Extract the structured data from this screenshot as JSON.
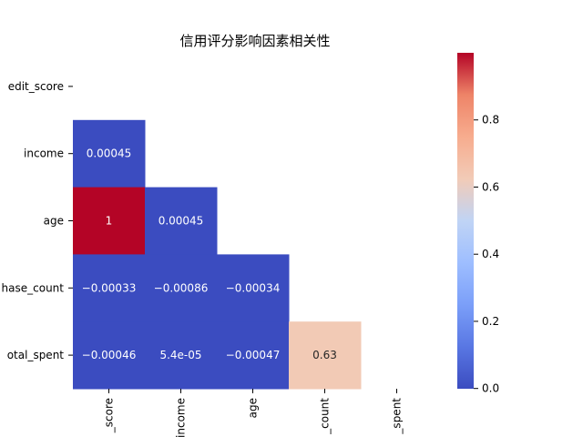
{
  "chart_data": {
    "type": "heatmap",
    "title": "信用评分影响因素相关性",
    "ylabels": [
      "edit_score",
      "income",
      "age",
      "hase_count",
      "otal_spent"
    ],
    "xlabels": [
      "_score",
      "income",
      "age",
      "_count",
      "_spent"
    ],
    "mask": "upper-triangle-including-diagonal",
    "values": [
      [
        null,
        null,
        null,
        null,
        null
      ],
      [
        0.00045,
        null,
        null,
        null,
        null
      ],
      [
        1,
        0.00045,
        null,
        null,
        null
      ],
      [
        -0.00033,
        -0.00086,
        -0.00034,
        null,
        null
      ],
      [
        -0.00046,
        5.4e-05,
        -0.00047,
        0.63,
        null
      ]
    ],
    "labels": [
      [
        null,
        null,
        null,
        null,
        null
      ],
      [
        "0.00045",
        null,
        null,
        null,
        null
      ],
      [
        "1",
        "0.00045",
        null,
        null,
        null
      ],
      [
        "−0.00033",
        "−0.00086",
        "−0.00034",
        null,
        null
      ],
      [
        "−0.00046",
        "5.4e-05",
        "−0.00047",
        "0.63",
        null
      ]
    ],
    "colormap": "coolwarm",
    "vmin": -0.00086,
    "vmax": 1,
    "colorbar_ticks": [
      "0.0",
      "0.2",
      "0.4",
      "0.6",
      "0.8"
    ],
    "colorbar_tick_values": [
      0,
      0.2,
      0.4,
      0.6,
      0.8
    ]
  }
}
